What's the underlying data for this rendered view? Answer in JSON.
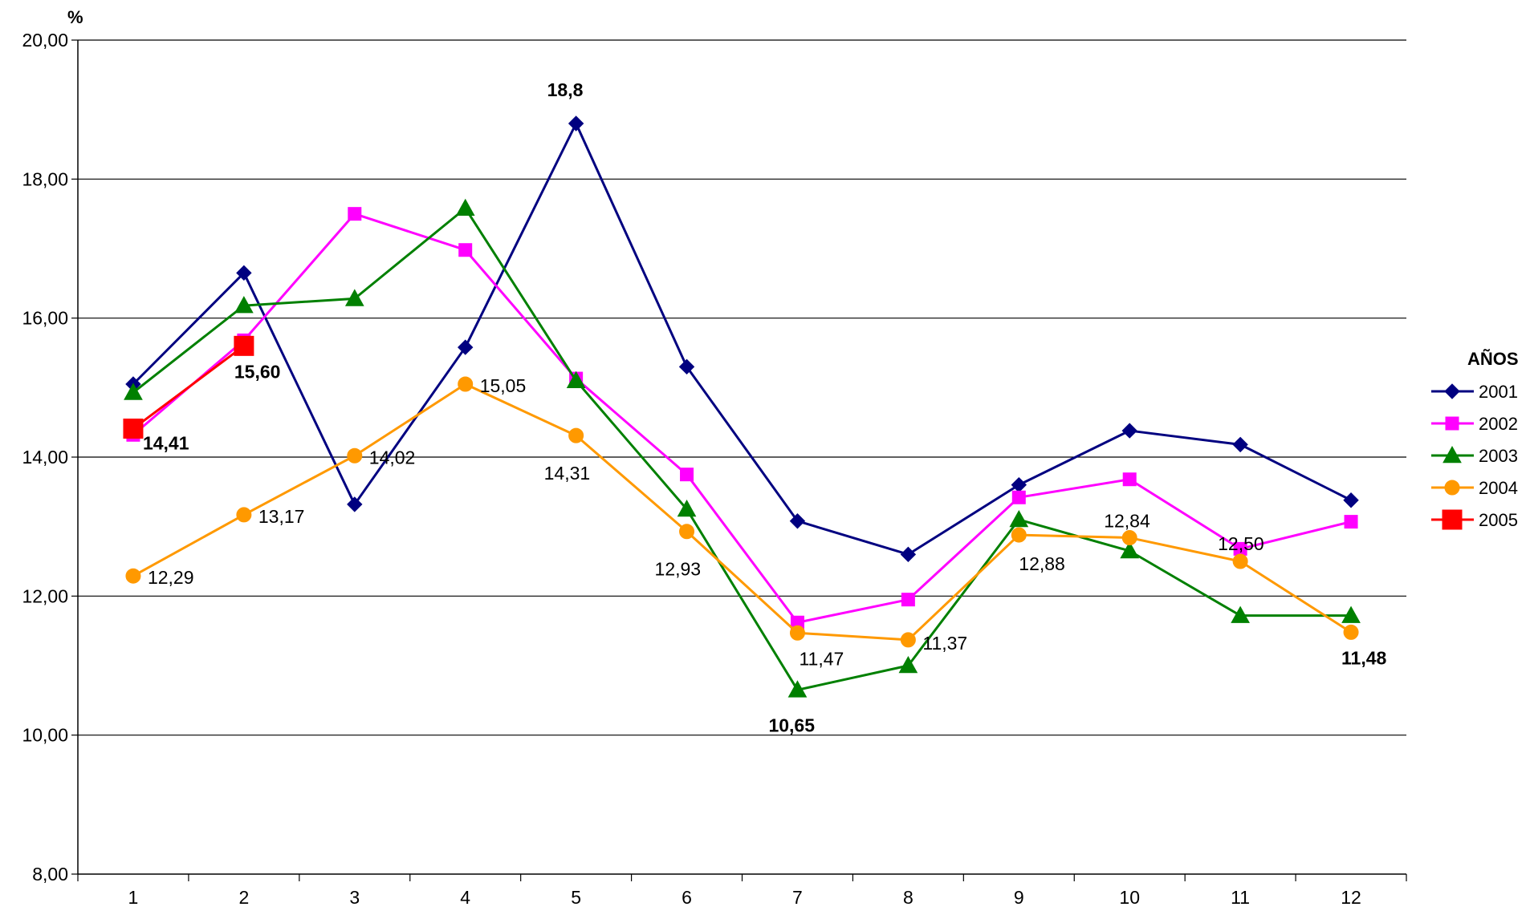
{
  "chart_data": {
    "type": "line",
    "ylabel": "%",
    "ylim": [
      8,
      20
    ],
    "yticks": [
      "8,00",
      "10,00",
      "12,00",
      "14,00",
      "16,00",
      "18,00",
      "20,00"
    ],
    "categories": [
      "1",
      "2",
      "3",
      "4",
      "5",
      "6",
      "7",
      "8",
      "9",
      "10",
      "11",
      "12"
    ],
    "grid": "horizontal",
    "legend": {
      "title": "AÑOS",
      "position": "right"
    },
    "series": [
      {
        "name": "2001",
        "color": "#000080",
        "marker": "diamond",
        "values": [
          15.05,
          16.65,
          13.32,
          15.58,
          18.8,
          15.3,
          13.08,
          12.6,
          13.6,
          14.38,
          14.18,
          13.38
        ]
      },
      {
        "name": "2002",
        "color": "#FF00FF",
        "marker": "square",
        "values": [
          14.32,
          15.68,
          17.5,
          16.98,
          15.13,
          13.75,
          11.62,
          11.95,
          13.42,
          13.68,
          12.68,
          13.07
        ]
      },
      {
        "name": "2003",
        "color": "#008000",
        "marker": "triangle",
        "values": [
          14.93,
          16.18,
          16.28,
          17.58,
          15.1,
          13.25,
          10.65,
          11.0,
          13.1,
          12.65,
          11.72,
          11.72
        ]
      },
      {
        "name": "2004",
        "color": "#FF9900",
        "marker": "circle",
        "values": [
          12.29,
          13.17,
          14.02,
          15.05,
          14.31,
          12.93,
          11.47,
          11.37,
          12.88,
          12.84,
          12.5,
          11.48
        ]
      },
      {
        "name": "2005",
        "color": "#FF0000",
        "marker": "bigsquare",
        "values": [
          14.41,
          15.6,
          null,
          null,
          null,
          null,
          null,
          null,
          null,
          null,
          null,
          null
        ]
      }
    ],
    "annotations": [
      {
        "text": "14,41",
        "series": "2005",
        "index": 0,
        "bold": true
      },
      {
        "text": "15,60",
        "series": "2005",
        "index": 1,
        "bold": true
      },
      {
        "text": "18,8",
        "series": "2001",
        "index": 4,
        "bold": true
      },
      {
        "text": "10,65",
        "series": "2003",
        "index": 6,
        "bold": true
      },
      {
        "text": "11,48",
        "series": "2004",
        "index": 11,
        "bold": true
      },
      {
        "text": "12,29",
        "series": "2004",
        "index": 0,
        "bold": false
      },
      {
        "text": "13,17",
        "series": "2004",
        "index": 1,
        "bold": false
      },
      {
        "text": "14,02",
        "series": "2004",
        "index": 2,
        "bold": false
      },
      {
        "text": "15,05",
        "series": "2004",
        "index": 3,
        "bold": false
      },
      {
        "text": "14,31",
        "series": "2004",
        "index": 4,
        "bold": false
      },
      {
        "text": "12,93",
        "series": "2004",
        "index": 5,
        "bold": false
      },
      {
        "text": "11,47",
        "series": "2004",
        "index": 6,
        "bold": false
      },
      {
        "text": "11,37",
        "series": "2004",
        "index": 7,
        "bold": false
      },
      {
        "text": "12,88",
        "series": "2004",
        "index": 8,
        "bold": false
      },
      {
        "text": "12,84",
        "series": "2004",
        "index": 9,
        "bold": false
      },
      {
        "text": "12,50",
        "series": "2004",
        "index": 10,
        "bold": false
      }
    ]
  }
}
